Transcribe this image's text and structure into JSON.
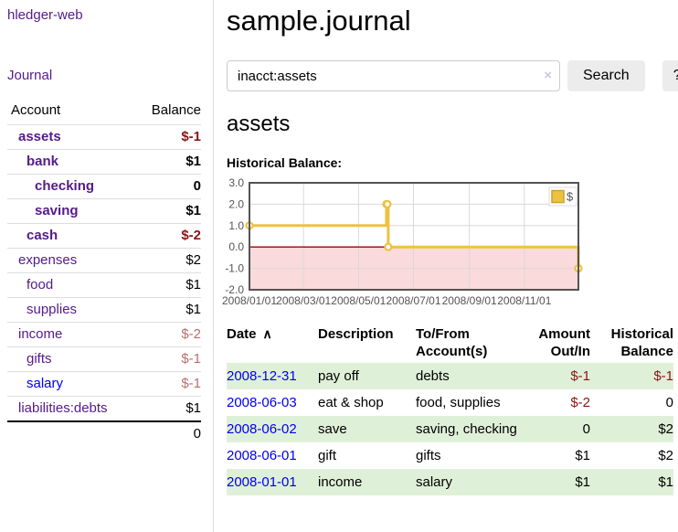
{
  "sidebar": {
    "brand": "hledger-web",
    "journal_link": "Journal",
    "accounts_table": {
      "col_account": "Account",
      "col_balance": "Balance"
    },
    "accounts": [
      {
        "name": "assets",
        "balance": "$-1"
      },
      {
        "name": "bank",
        "balance": "$1"
      },
      {
        "name": "checking",
        "balance": "0"
      },
      {
        "name": "saving",
        "balance": "$1"
      },
      {
        "name": "cash",
        "balance": "$-2"
      },
      {
        "name": "expenses",
        "balance": "$2"
      },
      {
        "name": "food",
        "balance": "$1"
      },
      {
        "name": "supplies",
        "balance": "$1"
      },
      {
        "name": "income",
        "balance": "$-2"
      },
      {
        "name": "gifts",
        "balance": "$-1"
      },
      {
        "name": "salary",
        "balance": "$-1"
      },
      {
        "name": "liabilities:debts",
        "balance": "$1"
      }
    ],
    "total_balance": "0"
  },
  "main": {
    "title": "sample.journal",
    "search": {
      "query": "inacct:assets",
      "clear_icon": "×",
      "search_button": "Search",
      "help_button": "?"
    },
    "account_heading": "assets",
    "chart_heading": "Historical Balance:"
  },
  "chart_data": {
    "type": "line",
    "line_style": "step",
    "title": "Historical Balance:",
    "series": [
      {
        "name": "$",
        "color": "#edc240",
        "points": [
          {
            "x": "2008-01-01",
            "y": 1
          },
          {
            "x": "2008-06-01",
            "y": 2
          },
          {
            "x": "2008-06-02",
            "y": 2
          },
          {
            "x": "2008-06-03",
            "y": 0
          },
          {
            "x": "2008-12-31",
            "y": -1
          }
        ]
      }
    ],
    "xlim": [
      "2008-01-01",
      "2008-12-31"
    ],
    "ylim": [
      -2,
      3
    ],
    "yticks": [
      {
        "v": 3,
        "label": "3.0"
      },
      {
        "v": 2,
        "label": "2.0"
      },
      {
        "v": 1,
        "label": "1.0"
      },
      {
        "v": 0,
        "label": "0.0"
      },
      {
        "v": -1,
        "label": "-1.0"
      },
      {
        "v": -2,
        "label": "-2.0"
      }
    ],
    "xticks": [
      {
        "date": "2008-01-01",
        "label": "2008/01/01"
      },
      {
        "date": "2008-03-01",
        "label": "2008/03/01"
      },
      {
        "date": "2008-05-01",
        "label": "2008/05/01"
      },
      {
        "date": "2008-07-01",
        "label": "2008/07/01"
      },
      {
        "date": "2008-09-01",
        "label": "2008/09/01"
      },
      {
        "date": "2008-11-01",
        "label": "2008/11/01"
      }
    ],
    "legend": {
      "label": "$",
      "position": "top-right"
    },
    "grid": true,
    "colors": {
      "line": "#edc240",
      "marker_fill": "#ffffff",
      "negative_region": "#fadada",
      "zero_line": "#a00000",
      "grid": "#d9d9d9",
      "border": "#545454",
      "axis_text": "#545454",
      "legend_border": "#dddddd",
      "legend_square_border": "#c9a227"
    }
  },
  "register": {
    "columns": {
      "date": "Date",
      "sort_icon": "∧",
      "description": "Description",
      "accounts": "To/From Account(s)",
      "amount": "Amount Out/In",
      "balance": "Historical Balance"
    },
    "rows": [
      {
        "date": "2008-12-31",
        "description": "pay off",
        "accounts": "debts",
        "amount": "$-1",
        "balance": "$-1"
      },
      {
        "date": "2008-06-03",
        "description": "eat & shop",
        "accounts": "food, supplies",
        "amount": "$-2",
        "balance": "0"
      },
      {
        "date": "2008-06-02",
        "description": "save",
        "accounts": "saving, checking",
        "amount": "0",
        "balance": "$2"
      },
      {
        "date": "2008-06-01",
        "description": "gift",
        "accounts": "gifts",
        "amount": "$1",
        "balance": "$2"
      },
      {
        "date": "2008-01-01",
        "description": "income",
        "accounts": "salary",
        "amount": "$1",
        "balance": "$1"
      }
    ]
  }
}
